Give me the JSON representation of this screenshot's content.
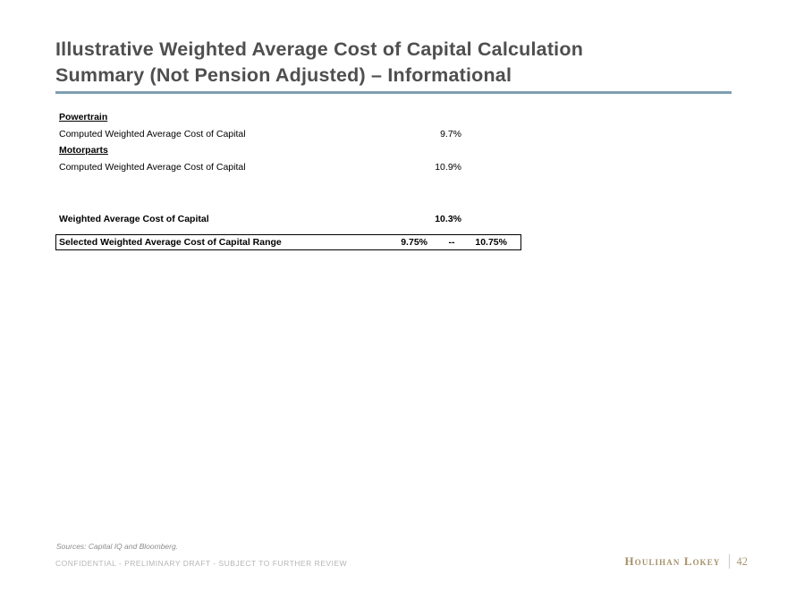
{
  "slide": {
    "title_lines": [
      "Illustrative Weighted Average Cost of Capital Calculation",
      "Summary (Not Pension Adjusted) – Informational"
    ],
    "colors": {
      "title_text": "#4f4f4f",
      "accent_rule": "#7f9fb2",
      "brand_gold": "#a5916a",
      "footer_gray": "#b5b5b5"
    }
  },
  "wacc_table": {
    "rows": [
      {
        "type": "section",
        "label": "Powertrain"
      },
      {
        "type": "data",
        "label": "Computed Weighted Average Cost of Capital",
        "value": "9.7%"
      },
      {
        "type": "section",
        "label": "Motorparts"
      },
      {
        "type": "data",
        "label": "Computed Weighted Average Cost of Capital",
        "value": "10.9%"
      },
      {
        "type": "total",
        "label": "Weighted Average Cost of Capital",
        "value": "10.3%"
      },
      {
        "type": "range",
        "label": "Selected Weighted Average Cost of Capital Range",
        "low": "9.75%",
        "separator": "--",
        "high": "10.75%"
      }
    ]
  },
  "footer": {
    "sources": "Sources: Capital IQ and Bloomberg.",
    "confidential": "CONFIDENTIAL - PRELIMINARY DRAFT - SUBJECT TO FURTHER REVIEW",
    "brand": "Houlihan Lokey",
    "page_number": "42"
  }
}
